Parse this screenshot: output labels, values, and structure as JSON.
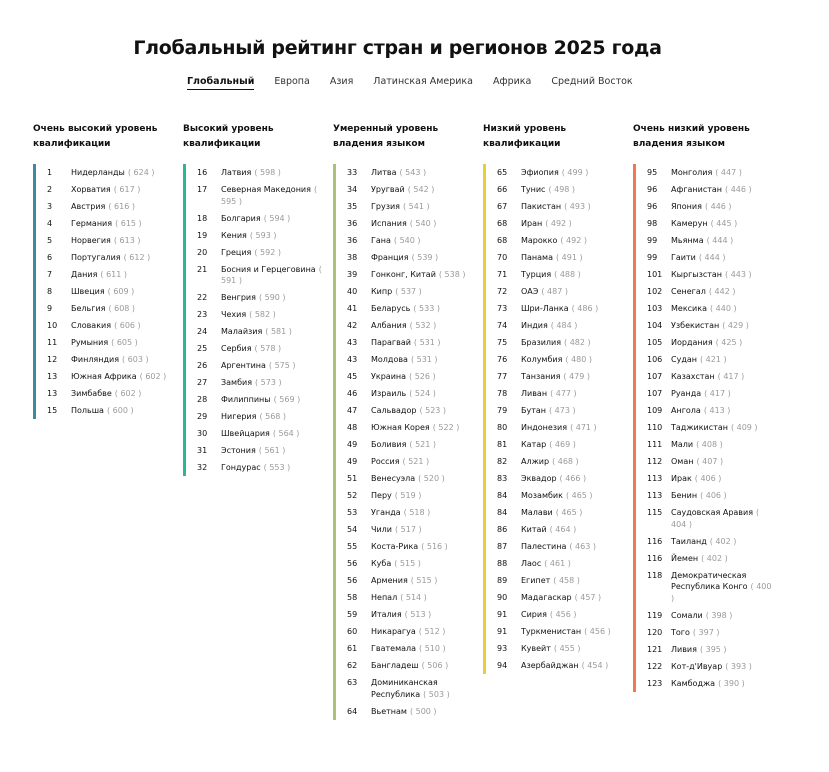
{
  "title": "Глобальный рейтинг стран и регионов 2025 года",
  "tabs": [
    "Глобальный",
    "Европа",
    "Азия",
    "Латинская Америка",
    "Африка",
    "Средний Восток"
  ],
  "active_tab": 0,
  "columns": [
    {
      "heading": "Очень высокий уровень квалификации",
      "color": "#3a8ca0",
      "items": [
        {
          "rank": "1",
          "name": "Нидерланды",
          "score": "( 624 )"
        },
        {
          "rank": "2",
          "name": "Хорватия",
          "score": "( 617 )"
        },
        {
          "rank": "3",
          "name": "Австрия",
          "score": "( 616 )"
        },
        {
          "rank": "4",
          "name": "Германия",
          "score": "( 615 )"
        },
        {
          "rank": "5",
          "name": "Норвегия",
          "score": "( 613 )"
        },
        {
          "rank": "6",
          "name": "Португалия",
          "score": "( 612 )"
        },
        {
          "rank": "7",
          "name": "Дания",
          "score": "( 611 )"
        },
        {
          "rank": "8",
          "name": "Швеция",
          "score": "( 609 )"
        },
        {
          "rank": "9",
          "name": "Бельгия",
          "score": "( 608 )"
        },
        {
          "rank": "10",
          "name": "Словакия",
          "score": "( 606 )"
        },
        {
          "rank": "11",
          "name": "Румыния",
          "score": "( 605 )"
        },
        {
          "rank": "12",
          "name": "Финляндия",
          "score": "( 603 )"
        },
        {
          "rank": "13",
          "name": "Южная Африка",
          "score": "( 602 )"
        },
        {
          "rank": "13",
          "name": "Зимбабве",
          "score": "( 602 )"
        },
        {
          "rank": "15",
          "name": "Польша",
          "score": "( 600 )"
        }
      ]
    },
    {
      "heading": "Высокий уровень квалификации",
      "color": "#2bb59b",
      "items": [
        {
          "rank": "16",
          "name": "Латвия",
          "score": "( 598 )"
        },
        {
          "rank": "17",
          "name": "Северная Македония",
          "score": "( 595 )"
        },
        {
          "rank": "18",
          "name": "Болгария",
          "score": "( 594 )"
        },
        {
          "rank": "19",
          "name": "Кения",
          "score": "( 593 )"
        },
        {
          "rank": "20",
          "name": "Греция",
          "score": "( 592 )"
        },
        {
          "rank": "21",
          "name": "Босния и Герцеговина",
          "score": "( 591 )"
        },
        {
          "rank": "22",
          "name": "Венгрия",
          "score": "( 590 )"
        },
        {
          "rank": "23",
          "name": "Чехия",
          "score": "( 582 )"
        },
        {
          "rank": "24",
          "name": "Малайзия",
          "score": "( 581 )"
        },
        {
          "rank": "25",
          "name": "Сербия",
          "score": "( 578 )"
        },
        {
          "rank": "26",
          "name": "Аргентина",
          "score": "( 575 )"
        },
        {
          "rank": "27",
          "name": "Замбия",
          "score": "( 573 )"
        },
        {
          "rank": "28",
          "name": "Филиппины",
          "score": "( 569 )"
        },
        {
          "rank": "29",
          "name": "Нигерия",
          "score": "( 568 )"
        },
        {
          "rank": "30",
          "name": "Швейцария",
          "score": "( 564 )"
        },
        {
          "rank": "31",
          "name": "Эстония",
          "score": "( 561 )"
        },
        {
          "rank": "32",
          "name": "Гондурас",
          "score": "( 553 )"
        }
      ]
    },
    {
      "heading": "Умеренный уровень владения языком",
      "color": "#a8c27a",
      "items": [
        {
          "rank": "33",
          "name": "Литва",
          "score": "( 543 )"
        },
        {
          "rank": "34",
          "name": "Уругвай",
          "score": "( 542 )"
        },
        {
          "rank": "35",
          "name": "Грузия",
          "score": "( 541 )"
        },
        {
          "rank": "36",
          "name": "Испания",
          "score": "( 540 )"
        },
        {
          "rank": "36",
          "name": "Гана",
          "score": "( 540 )"
        },
        {
          "rank": "38",
          "name": "Франция",
          "score": "( 539 )"
        },
        {
          "rank": "39",
          "name": "Гонконг, Китай",
          "score": "( 538 )"
        },
        {
          "rank": "40",
          "name": "Кипр",
          "score": "( 537 )"
        },
        {
          "rank": "41",
          "name": "Беларусь",
          "score": "( 533 )"
        },
        {
          "rank": "42",
          "name": "Албания",
          "score": "( 532 )"
        },
        {
          "rank": "43",
          "name": "Парагвай",
          "score": "( 531 )"
        },
        {
          "rank": "43",
          "name": "Молдова",
          "score": "( 531 )"
        },
        {
          "rank": "45",
          "name": "Украина",
          "score": "( 526 )"
        },
        {
          "rank": "46",
          "name": "Израиль",
          "score": "( 524 )"
        },
        {
          "rank": "47",
          "name": "Сальвадор",
          "score": "( 523 )"
        },
        {
          "rank": "48",
          "name": "Южная Корея",
          "score": "( 522 )"
        },
        {
          "rank": "49",
          "name": "Боливия",
          "score": "( 521 )"
        },
        {
          "rank": "49",
          "name": "Россия",
          "score": "( 521 )"
        },
        {
          "rank": "51",
          "name": "Венесуэла",
          "score": "( 520 )"
        },
        {
          "rank": "52",
          "name": "Перу",
          "score": "( 519 )"
        },
        {
          "rank": "53",
          "name": "Уганда",
          "score": "( 518 )"
        },
        {
          "rank": "54",
          "name": "Чили",
          "score": "( 517 )"
        },
        {
          "rank": "55",
          "name": "Коста-Рика",
          "score": "( 516 )"
        },
        {
          "rank": "56",
          "name": "Куба",
          "score": "( 515 )"
        },
        {
          "rank": "56",
          "name": "Армения",
          "score": "( 515 )"
        },
        {
          "rank": "58",
          "name": "Непал",
          "score": "( 514 )"
        },
        {
          "rank": "59",
          "name": "Италия",
          "score": "( 513 )"
        },
        {
          "rank": "60",
          "name": "Никарагуа",
          "score": "( 512 )"
        },
        {
          "rank": "61",
          "name": "Гватемала",
          "score": "( 510 )"
        },
        {
          "rank": "62",
          "name": "Бангладеш",
          "score": "( 506 )"
        },
        {
          "rank": "63",
          "name": "Доминиканская Республика",
          "score": "( 503 )"
        },
        {
          "rank": "64",
          "name": "Вьетнам",
          "score": "( 500 )"
        }
      ]
    },
    {
      "heading": "Низкий уровень квалификации",
      "color": "#e6cf3a",
      "items": [
        {
          "rank": "65",
          "name": "Эфиопия",
          "score": "( 499 )"
        },
        {
          "rank": "66",
          "name": "Тунис",
          "score": "( 498 )"
        },
        {
          "rank": "67",
          "name": "Пакистан",
          "score": "( 493 )"
        },
        {
          "rank": "68",
          "name": "Иран",
          "score": "( 492 )"
        },
        {
          "rank": "68",
          "name": "Марокко",
          "score": "( 492 )"
        },
        {
          "rank": "70",
          "name": "Панама",
          "score": "( 491 )"
        },
        {
          "rank": "71",
          "name": "Турция",
          "score": "( 488 )"
        },
        {
          "rank": "72",
          "name": "ОАЭ",
          "score": "( 487 )"
        },
        {
          "rank": "73",
          "name": "Шри-Ланка",
          "score": "( 486 )"
        },
        {
          "rank": "74",
          "name": "Индия",
          "score": "( 484 )"
        },
        {
          "rank": "75",
          "name": "Бразилия",
          "score": "( 482 )"
        },
        {
          "rank": "76",
          "name": "Колумбия",
          "score": "( 480 )"
        },
        {
          "rank": "77",
          "name": "Танзания",
          "score": "( 479 )"
        },
        {
          "rank": "78",
          "name": "Ливан",
          "score": "( 477 )"
        },
        {
          "rank": "79",
          "name": "Бутан",
          "score": "( 473 )"
        },
        {
          "rank": "80",
          "name": "Индонезия",
          "score": "( 471 )"
        },
        {
          "rank": "81",
          "name": "Катар",
          "score": "( 469 )"
        },
        {
          "rank": "82",
          "name": "Алжир",
          "score": "( 468 )"
        },
        {
          "rank": "83",
          "name": "Эквадор",
          "score": "( 466 )"
        },
        {
          "rank": "84",
          "name": "Мозамбик",
          "score": "( 465 )"
        },
        {
          "rank": "84",
          "name": "Малави",
          "score": "( 465 )"
        },
        {
          "rank": "86",
          "name": "Китай",
          "score": "( 464 )"
        },
        {
          "rank": "87",
          "name": "Палестина",
          "score": "( 463 )"
        },
        {
          "rank": "88",
          "name": "Лаос",
          "score": "( 461 )"
        },
        {
          "rank": "89",
          "name": "Египет",
          "score": "( 458 )"
        },
        {
          "rank": "90",
          "name": "Мадагаскар",
          "score": "( 457 )"
        },
        {
          "rank": "91",
          "name": "Сирия",
          "score": "( 456 )"
        },
        {
          "rank": "91",
          "name": "Туркменистан",
          "score": "( 456 )"
        },
        {
          "rank": "93",
          "name": "Кувейт",
          "score": "( 455 )"
        },
        {
          "rank": "94",
          "name": "Азербайджан",
          "score": "( 454 )"
        }
      ]
    },
    {
      "heading": "Очень низкий уровень владения языком",
      "color": "#ef7a4b",
      "items": [
        {
          "rank": "95",
          "name": "Монголия",
          "score": "( 447 )"
        },
        {
          "rank": "96",
          "name": "Афганистан",
          "score": "( 446 )"
        },
        {
          "rank": "96",
          "name": "Япония",
          "score": "( 446 )"
        },
        {
          "rank": "98",
          "name": "Камерун",
          "score": "( 445 )"
        },
        {
          "rank": "99",
          "name": "Мьянма",
          "score": "( 444 )"
        },
        {
          "rank": "99",
          "name": "Гаити",
          "score": "( 444 )"
        },
        {
          "rank": "101",
          "name": "Кыргызстан",
          "score": "( 443 )"
        },
        {
          "rank": "102",
          "name": "Сенегал",
          "score": "( 442 )"
        },
        {
          "rank": "103",
          "name": "Мексика",
          "score": "( 440 )"
        },
        {
          "rank": "104",
          "name": "Узбекистан",
          "score": "( 429 )"
        },
        {
          "rank": "105",
          "name": "Иордания",
          "score": "( 425 )"
        },
        {
          "rank": "106",
          "name": "Судан",
          "score": "( 421 )"
        },
        {
          "rank": "107",
          "name": "Казахстан",
          "score": "( 417 )"
        },
        {
          "rank": "107",
          "name": "Руанда",
          "score": "( 417 )"
        },
        {
          "rank": "109",
          "name": "Ангола",
          "score": "( 413 )"
        },
        {
          "rank": "110",
          "name": "Таджикистан",
          "score": "( 409 )"
        },
        {
          "rank": "111",
          "name": "Мали",
          "score": "( 408 )"
        },
        {
          "rank": "112",
          "name": "Оман",
          "score": "( 407 )"
        },
        {
          "rank": "113",
          "name": "Ирак",
          "score": "( 406 )"
        },
        {
          "rank": "113",
          "name": "Бенин",
          "score": "( 406 )"
        },
        {
          "rank": "115",
          "name": "Саудовская Аравия",
          "score": "( 404 )"
        },
        {
          "rank": "116",
          "name": "Таиланд",
          "score": "( 402 )"
        },
        {
          "rank": "116",
          "name": "Йемен",
          "score": "( 402 )"
        },
        {
          "rank": "118",
          "name": "Демократическая Республика Конго",
          "score": "( 400 )"
        },
        {
          "rank": "119",
          "name": "Сомали",
          "score": "( 398 )"
        },
        {
          "rank": "120",
          "name": "Того",
          "score": "( 397 )"
        },
        {
          "rank": "121",
          "name": "Ливия",
          "score": "( 395 )"
        },
        {
          "rank": "122",
          "name": "Кот-д'Ивуар",
          "score": "( 393 )"
        },
        {
          "rank": "123",
          "name": "Камбоджа",
          "score": "( 390 )"
        }
      ]
    }
  ]
}
